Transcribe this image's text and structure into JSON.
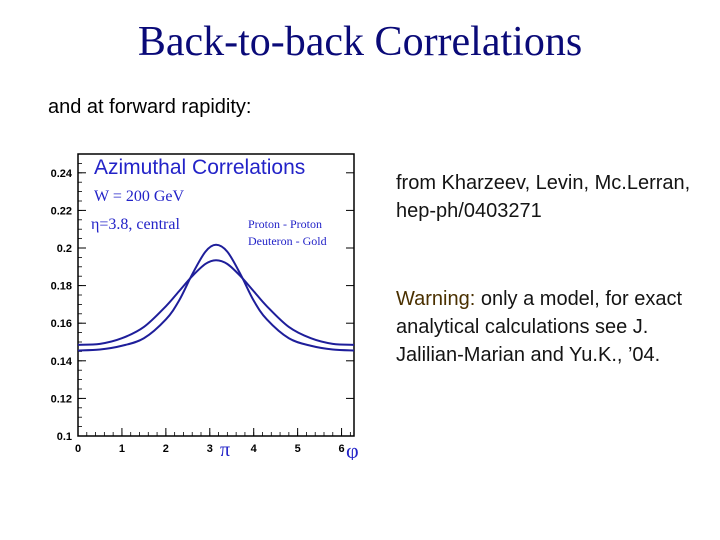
{
  "slide": {
    "title": "Back-to-back Correlations",
    "subtitle": "and at forward rapidity:",
    "reference": "from Kharzeev, Levin, Mc.Lerran, hep-ph/0403271",
    "warning_label": "Warning:",
    "warning_text": " only a model, for exact analytical calculations see J. Jalilian-Marian and Yu.K., ’04."
  },
  "chart_data": {
    "type": "line",
    "title": "Azimuthal Correlations",
    "annotations": [
      "W = 200 GeV",
      "η=3.8, central"
    ],
    "xlabel": "φ",
    "ylabel": "",
    "xlim": [
      0,
      6.283
    ],
    "ylim": [
      0.1,
      0.25
    ],
    "x_ticks": [
      "0",
      "1",
      "2",
      "3",
      "4",
      "5",
      "6"
    ],
    "pi_label": "π",
    "y_ticks": [
      "0.1",
      "0.12",
      "0.14",
      "0.16",
      "0.18",
      "0.2",
      "0.22",
      "0.24"
    ],
    "y_tick_values": [
      0.1,
      0.12,
      0.14,
      0.16,
      0.18,
      0.2,
      0.22,
      0.24
    ],
    "legend": [
      "Proton - Proton",
      "Deuteron - Gold"
    ],
    "line_color": "#1e1e9a",
    "title_color": "#2323c8",
    "series": [
      {
        "name": "Proton - Proton",
        "x": [
          0,
          0.5,
          1,
          1.5,
          2,
          2.3,
          2.6,
          2.9,
          3.1416,
          3.4,
          3.7,
          4,
          4.3,
          4.8,
          5.3,
          5.8,
          6.283
        ],
        "y": [
          0.1455,
          0.146,
          0.148,
          0.152,
          0.162,
          0.172,
          0.186,
          0.198,
          0.2017,
          0.198,
          0.186,
          0.172,
          0.162,
          0.152,
          0.148,
          0.146,
          0.1455
        ]
      },
      {
        "name": "Deuteron - Gold",
        "x": [
          0,
          0.5,
          1,
          1.5,
          2,
          2.3,
          2.6,
          2.9,
          3.1416,
          3.4,
          3.7,
          4,
          4.3,
          4.8,
          5.3,
          5.8,
          6.283
        ],
        "y": [
          0.1485,
          0.149,
          0.152,
          0.158,
          0.169,
          0.177,
          0.185,
          0.1915,
          0.1935,
          0.1915,
          0.185,
          0.177,
          0.169,
          0.158,
          0.152,
          0.149,
          0.1485
        ]
      }
    ]
  }
}
